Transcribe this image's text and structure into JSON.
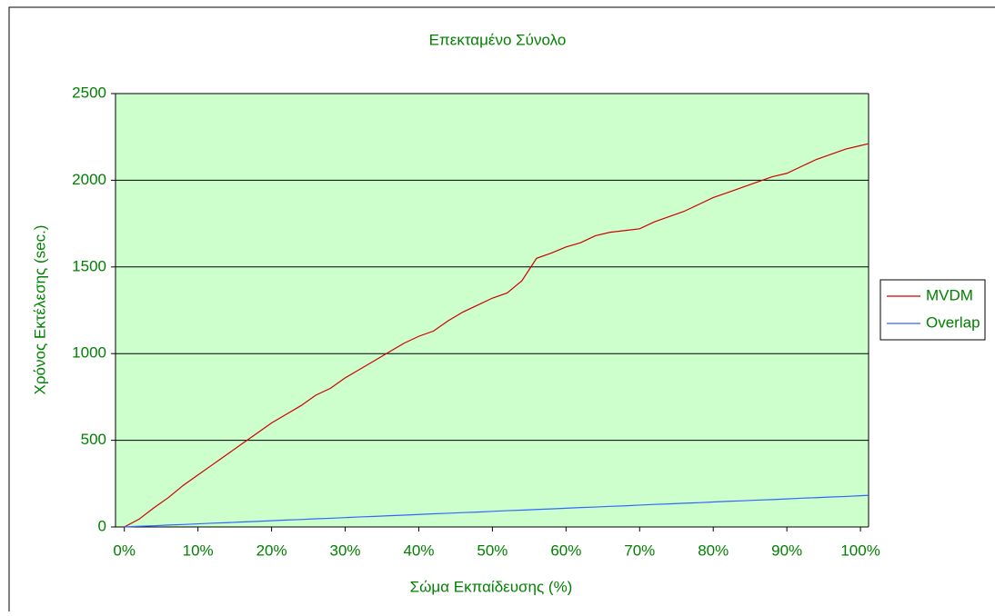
{
  "chart_data": {
    "type": "line",
    "title": "Επεκταμένο Σύνολο",
    "xlabel": "Σώμα Εκπαίδευσης (%)",
    "ylabel": "Χρόνος Εκτέλεσης (sec.)",
    "x": [
      0,
      2,
      4,
      6,
      8,
      10,
      12,
      14,
      16,
      18,
      20,
      22,
      24,
      26,
      28,
      30,
      32,
      34,
      36,
      38,
      40,
      42,
      44,
      46,
      48,
      50,
      52,
      54,
      56,
      58,
      60,
      62,
      64,
      66,
      68,
      70,
      72,
      74,
      76,
      78,
      80,
      82,
      84,
      86,
      88,
      90,
      92,
      94,
      96,
      98,
      100,
      101
    ],
    "series": [
      {
        "name": "MVDM",
        "color": "#cc0000",
        "values": [
          0,
          45,
          110,
          170,
          240,
          300,
          360,
          420,
          480,
          540,
          600,
          650,
          700,
          760,
          800,
          860,
          910,
          960,
          1010,
          1060,
          1100,
          1130,
          1190,
          1240,
          1280,
          1320,
          1350,
          1420,
          1550,
          1580,
          1615,
          1640,
          1680,
          1700,
          1710,
          1720,
          1760,
          1790,
          1820,
          1860,
          1900,
          1930,
          1960,
          1990,
          2020,
          2040,
          2080,
          2120,
          2150,
          2180,
          2200,
          2210
        ]
      },
      {
        "name": "Overlap",
        "color": "#3366ff",
        "values": [
          0,
          4,
          7,
          11,
          14,
          18,
          22,
          25,
          29,
          32,
          36,
          40,
          43,
          47,
          50,
          54,
          58,
          61,
          65,
          68,
          72,
          76,
          79,
          83,
          86,
          90,
          94,
          97,
          101,
          104,
          108,
          112,
          115,
          119,
          122,
          126,
          130,
          133,
          137,
          140,
          144,
          148,
          151,
          155,
          158,
          162,
          166,
          169,
          173,
          176,
          180,
          182
        ]
      }
    ],
    "xlim": [
      -1.2,
      101.1
    ],
    "xticks": [
      {
        "value": 0,
        "label": "0%"
      },
      {
        "value": 10,
        "label": "10%"
      },
      {
        "value": 20,
        "label": "20%"
      },
      {
        "value": 30,
        "label": "30%"
      },
      {
        "value": 40,
        "label": "40%"
      },
      {
        "value": 50,
        "label": "50%"
      },
      {
        "value": 60,
        "label": "60%"
      },
      {
        "value": 70,
        "label": "70%"
      },
      {
        "value": 80,
        "label": "80%"
      },
      {
        "value": 90,
        "label": "90%"
      },
      {
        "value": 100,
        "label": "100%"
      }
    ],
    "ylim": [
      0,
      2500
    ],
    "yticks": [
      0,
      500,
      1000,
      1500,
      2000,
      2500
    ],
    "grid": true,
    "legend": "right"
  }
}
